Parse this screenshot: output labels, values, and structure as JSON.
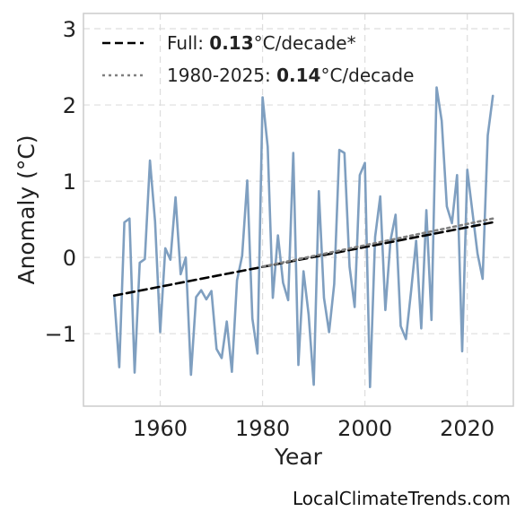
{
  "chart_data": {
    "type": "line",
    "xlabel": "Year",
    "ylabel": "Anomaly (°C)",
    "xlim": [
      1945,
      2029
    ],
    "ylim": [
      -1.95,
      3.2
    ],
    "x_ticks": [
      1960,
      1980,
      2000,
      2020
    ],
    "y_ticks": [
      -1,
      0,
      1,
      2,
      3
    ],
    "y_tick_labels": [
      "−1",
      "0",
      "1",
      "2",
      "3"
    ],
    "grid": true,
    "legend_position": "top-left",
    "series": [
      {
        "type": "line",
        "color": "#7f9fc0",
        "x": [
          1951,
          1952,
          1953,
          1954,
          1955,
          1956,
          1957,
          1958,
          1959,
          1960,
          1961,
          1962,
          1963,
          1964,
          1965,
          1966,
          1967,
          1968,
          1969,
          1970,
          1971,
          1972,
          1973,
          1974,
          1975,
          1976,
          1977,
          1978,
          1979,
          1980,
          1981,
          1982,
          1983,
          1984,
          1985,
          1986,
          1987,
          1988,
          1989,
          1990,
          1991,
          1992,
          1993,
          1994,
          1995,
          1996,
          1997,
          1998,
          1999,
          2000,
          2001,
          2002,
          2003,
          2004,
          2005,
          2006,
          2007,
          2008,
          2009,
          2010,
          2011,
          2012,
          2013,
          2014,
          2015,
          2016,
          2017,
          2018,
          2019,
          2020,
          2021,
          2022,
          2023,
          2024,
          2025
        ],
        "values": [
          -0.5,
          -1.44,
          0.46,
          0.51,
          -1.51,
          -0.07,
          -0.02,
          1.27,
          0.47,
          -0.98,
          0.12,
          -0.03,
          0.79,
          -0.22,
          0.0,
          -1.54,
          -0.52,
          -0.43,
          -0.55,
          -0.44,
          -1.2,
          -1.32,
          -0.84,
          -1.5,
          -0.3,
          0.02,
          1.01,
          -0.8,
          -1.26,
          2.1,
          1.45,
          -0.53,
          0.29,
          -0.33,
          -0.56,
          1.37,
          -1.41,
          -0.18,
          -0.75,
          -1.67,
          0.87,
          -0.53,
          -0.98,
          -0.35,
          1.41,
          1.37,
          -0.12,
          -0.65,
          1.08,
          1.24,
          -1.7,
          0.27,
          0.8,
          -0.69,
          0.22,
          0.56,
          -0.9,
          -1.07,
          -0.45,
          0.22,
          -0.93,
          0.62,
          -0.82,
          2.23,
          1.79,
          0.67,
          0.45,
          1.08,
          -1.23,
          1.15,
          0.6,
          0.05,
          -0.28,
          1.6,
          2.12
        ]
      },
      {
        "name": "Full",
        "type": "trend",
        "style": "dashed",
        "color": "#000000",
        "x": [
          1951,
          2025
        ],
        "values": [
          -0.5,
          0.46
        ]
      },
      {
        "name": "1980-2025",
        "type": "trend",
        "style": "dotted",
        "color": "#808080",
        "x": [
          1980,
          2025
        ],
        "values": [
          -0.12,
          0.51
        ]
      }
    ],
    "legend": [
      {
        "prefix": "Full: ",
        "value": "0.13",
        "suffix": "°C/decade*",
        "style": "dashed",
        "color": "#000000"
      },
      {
        "prefix": "1980-2025: ",
        "value": "0.14",
        "suffix": "°C/decade",
        "style": "dotted",
        "color": "#808080"
      }
    ]
  },
  "watermark": "LocalClimateTrends.com"
}
